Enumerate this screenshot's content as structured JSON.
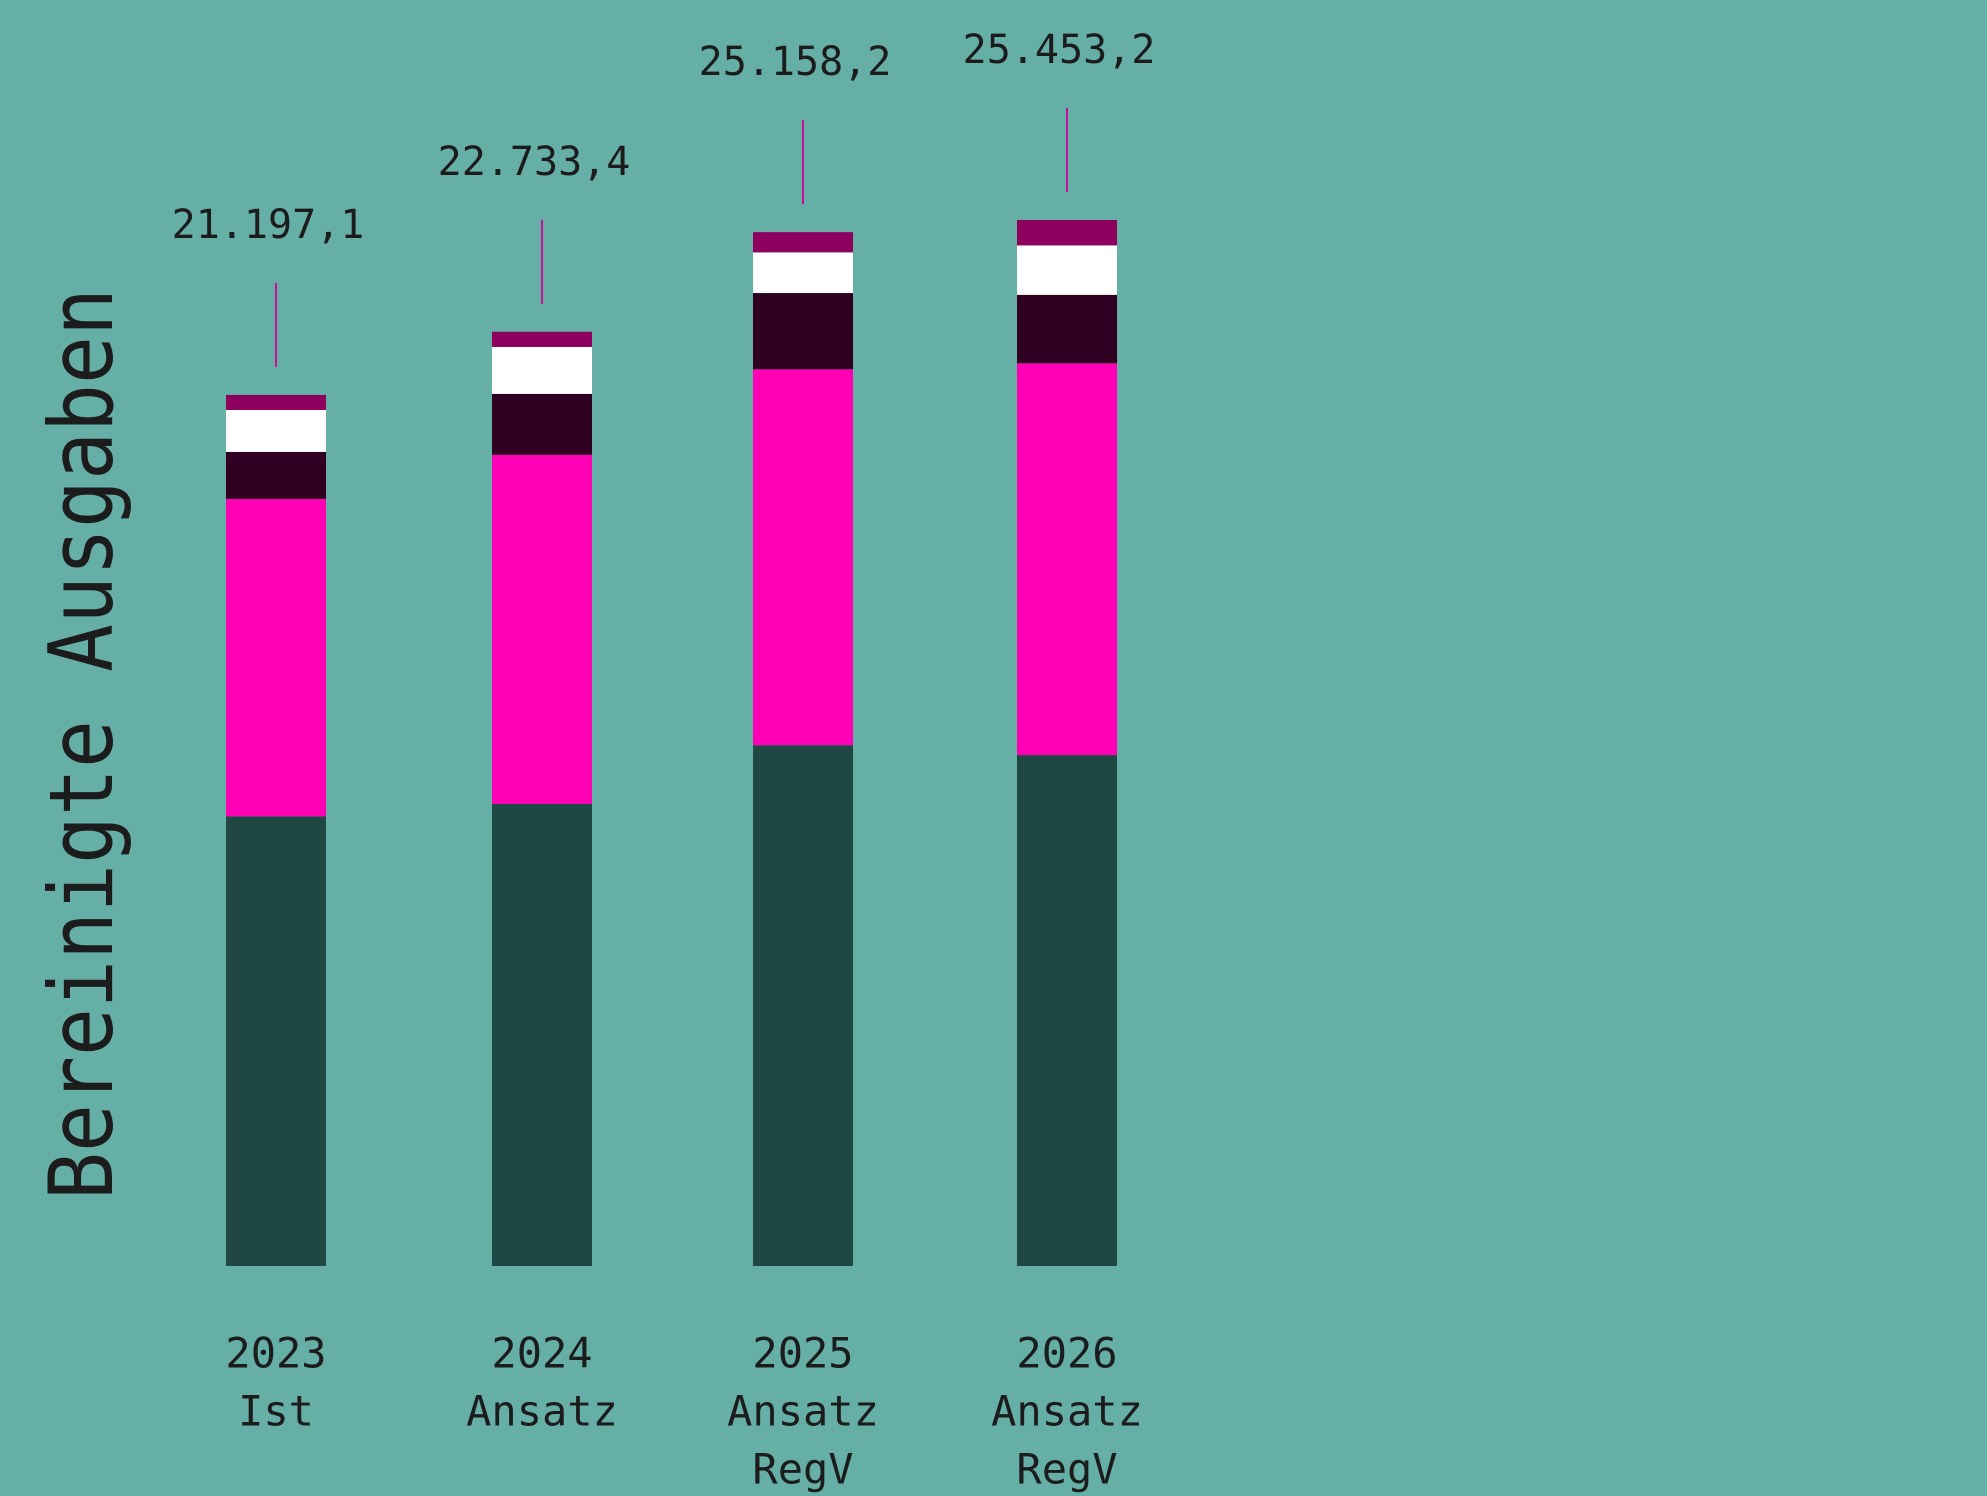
{
  "chart_data": {
    "type": "stacked-bar",
    "y_axis_title": "Bereinigte Ausgaben",
    "categories": [
      [
        "2023",
        "Ist"
      ],
      [
        "2024",
        "Ansatz"
      ],
      [
        "2025",
        "Ansatz",
        "RegV"
      ],
      [
        "2026",
        "Ansatz",
        "RegV"
      ]
    ],
    "series": [
      {
        "color": "#1f4744",
        "values": [
          10940,
          11244,
          12672,
          12433
        ]
      },
      {
        "color": "#ff00b4",
        "values": [
          7725,
          8495,
          9149,
          9533
        ]
      },
      {
        "color": "#300022",
        "values": [
          1145,
          1483,
          1855,
          1666
        ]
      },
      {
        "color": "#ffffff",
        "values": [
          1020,
          1143,
          989,
          1203
        ]
      },
      {
        "color": "#8e005e",
        "values": [
          367.1,
          368.4,
          493.2,
          618.2
        ]
      }
    ],
    "totals": [
      21197.1,
      22733.4,
      25158.2,
      25453.2
    ],
    "total_labels": [
      "21.197,1",
      "22.733,4",
      "25.158,2",
      "25.453,2"
    ],
    "leader_color": "#c8109a"
  }
}
